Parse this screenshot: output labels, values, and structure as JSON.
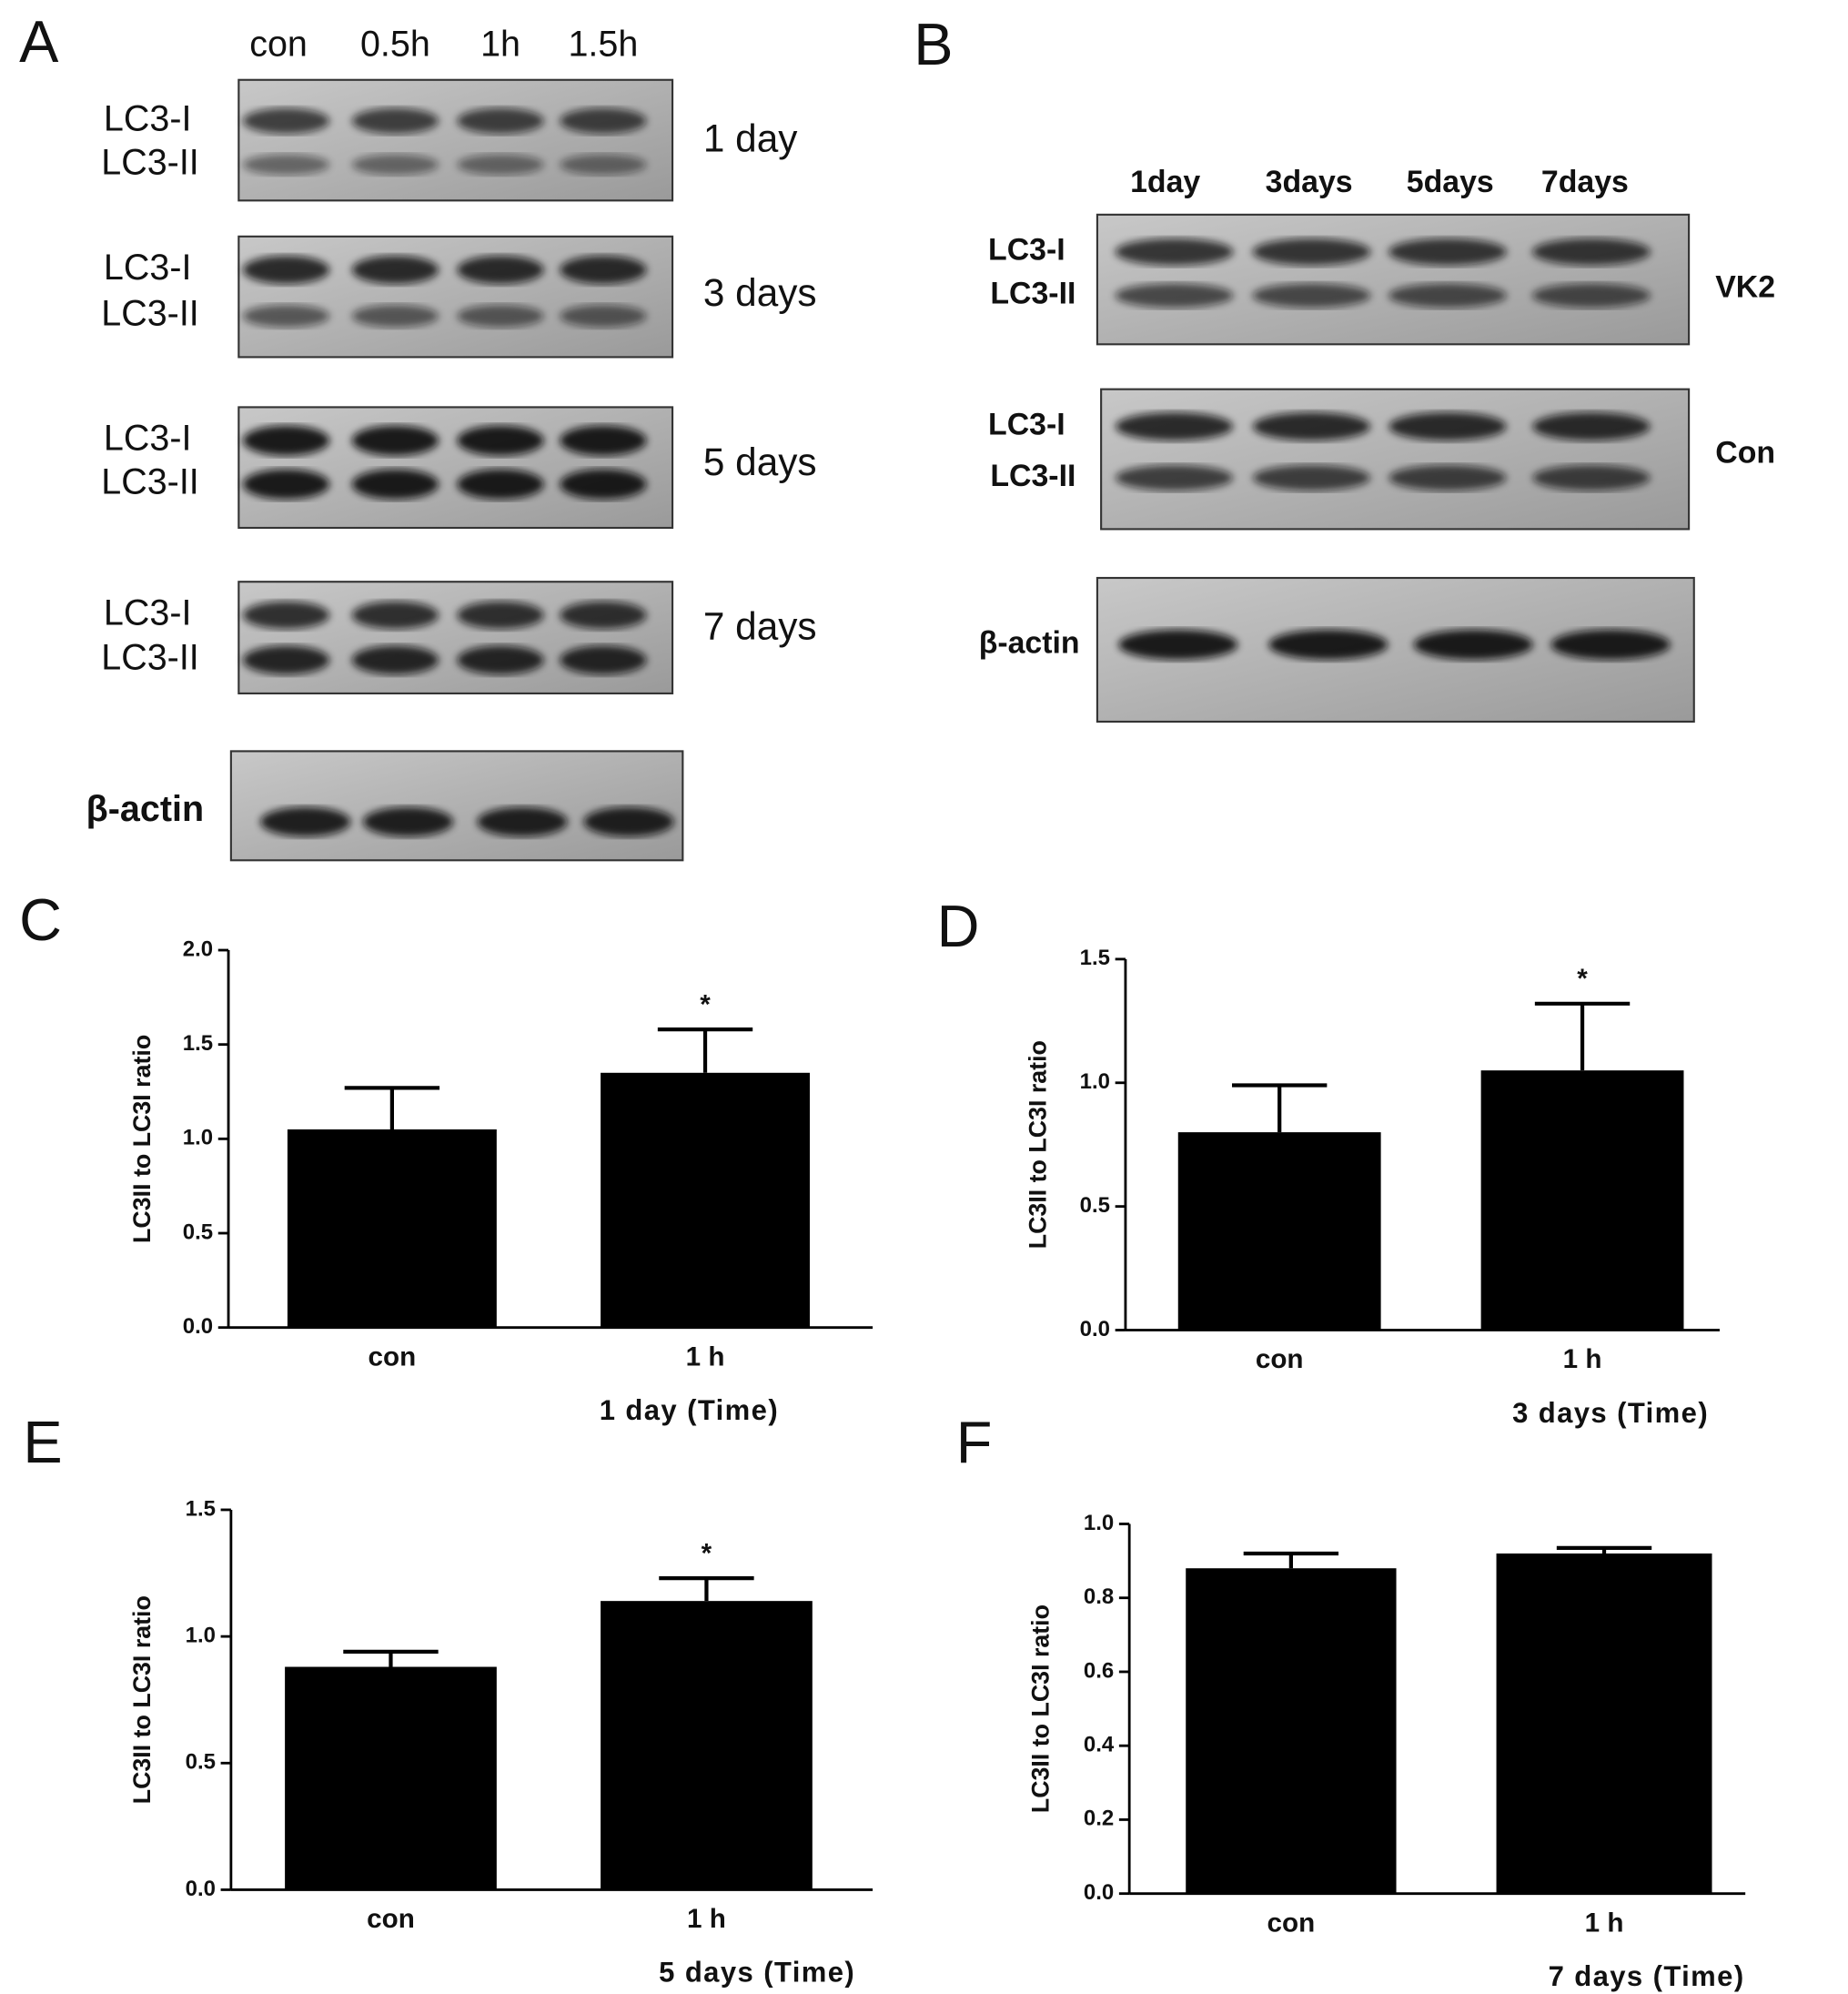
{
  "panels": {
    "A": {
      "label": "A",
      "lanes": [
        "con",
        "0.5h",
        "1h",
        "1.5h"
      ],
      "rows": [
        {
          "bands": [
            "LC3-I",
            "LC3-II"
          ],
          "condition": "1 day"
        },
        {
          "bands": [
            "LC3-I",
            "LC3-II"
          ],
          "condition": "3 days"
        },
        {
          "bands": [
            "LC3-I",
            "LC3-II"
          ],
          "condition": "5 days"
        },
        {
          "bands": [
            "LC3-I",
            "LC3-II"
          ],
          "condition": "7 days"
        }
      ],
      "loading_control": "β-actin"
    },
    "B": {
      "label": "B",
      "lanes": [
        "1day",
        "3days",
        "5days",
        "7days"
      ],
      "rows": [
        {
          "bands": [
            "LC3-I",
            "LC3-II"
          ],
          "condition": "VK2"
        },
        {
          "bands": [
            "LC3-I",
            "LC3-II"
          ],
          "condition": "Con"
        }
      ],
      "loading_control": "β-actin"
    }
  },
  "chart_data": [
    {
      "type": "bar",
      "panel": "C",
      "ylabel": "LC3II to LC3I ratio",
      "xlabel": "1 day (Time)",
      "categories": [
        "con",
        "1 h"
      ],
      "values": [
        1.05,
        1.35
      ],
      "errors": [
        0.22,
        0.23
      ],
      "significance": [
        null,
        "*"
      ],
      "color": "#000000",
      "ylim": [
        0,
        2
      ],
      "yticks": [
        {
          "value": 0,
          "label": "0.0"
        },
        0.5,
        {
          "value": 1,
          "label": "1.0"
        },
        1.5,
        {
          "value": 2,
          "label": "2.0"
        }
      ]
    },
    {
      "type": "bar",
      "panel": "D",
      "ylabel": "LC3II to LC3I ratio",
      "xlabel": "3 days (Time)",
      "categories": [
        "con",
        "1 h"
      ],
      "values": [
        0.8,
        1.05
      ],
      "errors": [
        0.19,
        0.27
      ],
      "significance": [
        null,
        "*"
      ],
      "color": "#000000",
      "ylim": [
        0,
        1.5
      ],
      "yticks": [
        {
          "value": 0,
          "label": "0.0"
        },
        0.5,
        {
          "value": 1,
          "label": "1.0"
        },
        1.5
      ]
    },
    {
      "type": "bar",
      "panel": "E",
      "ylabel": "LC3II to LC3I ratio",
      "xlabel": "5 days (Time)",
      "categories": [
        "con",
        "1 h"
      ],
      "values": [
        0.88,
        1.14
      ],
      "errors": [
        0.06,
        0.09
      ],
      "significance": [
        null,
        "*"
      ],
      "color": "#000000",
      "ylim": [
        0,
        1.5
      ],
      "yticks": [
        {
          "value": 0,
          "label": "0.0"
        },
        0.5,
        {
          "value": 1,
          "label": "1.0"
        },
        1.5
      ]
    },
    {
      "type": "bar",
      "panel": "F",
      "ylabel": "LC3II to LC3I ratio",
      "xlabel": "7 days (Time)",
      "categories": [
        "con",
        "1 h"
      ],
      "values": [
        0.88,
        0.92
      ],
      "errors": [
        0.04,
        0.015
      ],
      "significance": [
        null,
        null
      ],
      "color": "#000000",
      "ylim": [
        0,
        1
      ],
      "yticks": [
        {
          "value": 0,
          "label": "0.0"
        },
        0.2,
        0.4,
        0.6,
        0.8,
        {
          "value": 1,
          "label": "1.0"
        }
      ]
    }
  ]
}
